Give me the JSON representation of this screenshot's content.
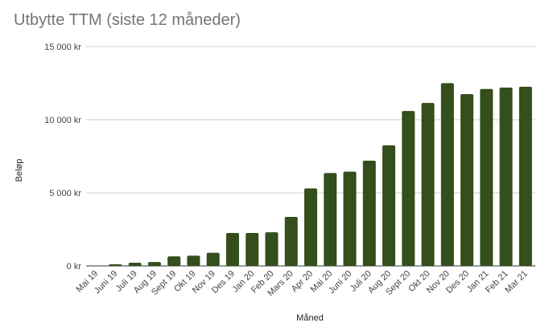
{
  "chart_data": {
    "type": "bar",
    "title": "Utbytte TTM (siste 12 måneder)",
    "xlabel": "Måned",
    "ylabel": "Beløp",
    "ylim": [
      0,
      15000
    ],
    "yticks": [
      {
        "value": 0,
        "label": "0 kr"
      },
      {
        "value": 5000,
        "label": "5 000 kr"
      },
      {
        "value": 10000,
        "label": "10 000 kr"
      },
      {
        "value": 15000,
        "label": "15 000 kr"
      }
    ],
    "grid": true,
    "legend": "none",
    "bar_color": "#344e1c",
    "categories": [
      "Mai 19",
      "Juni 19",
      "Juli 19",
      "Aug 19",
      "Sept 19",
      "Okt 19",
      "Nov 19",
      "Des 19",
      "Jan 20",
      "Feb 20",
      "Mars 20",
      "Apr 20",
      "Mai 20",
      "Juni 20",
      "Juli 20",
      "Aug 20",
      "Sept 20",
      "Okt 20",
      "Nov 20",
      "Des 20",
      "Jan 21",
      "Feb 21",
      "Mar 21"
    ],
    "values": [
      0,
      110,
      220,
      270,
      650,
      700,
      900,
      2250,
      2250,
      2300,
      3350,
      5300,
      6350,
      6450,
      7200,
      8250,
      10600,
      11150,
      12500,
      11750,
      12100,
      12200,
      12250
    ]
  }
}
